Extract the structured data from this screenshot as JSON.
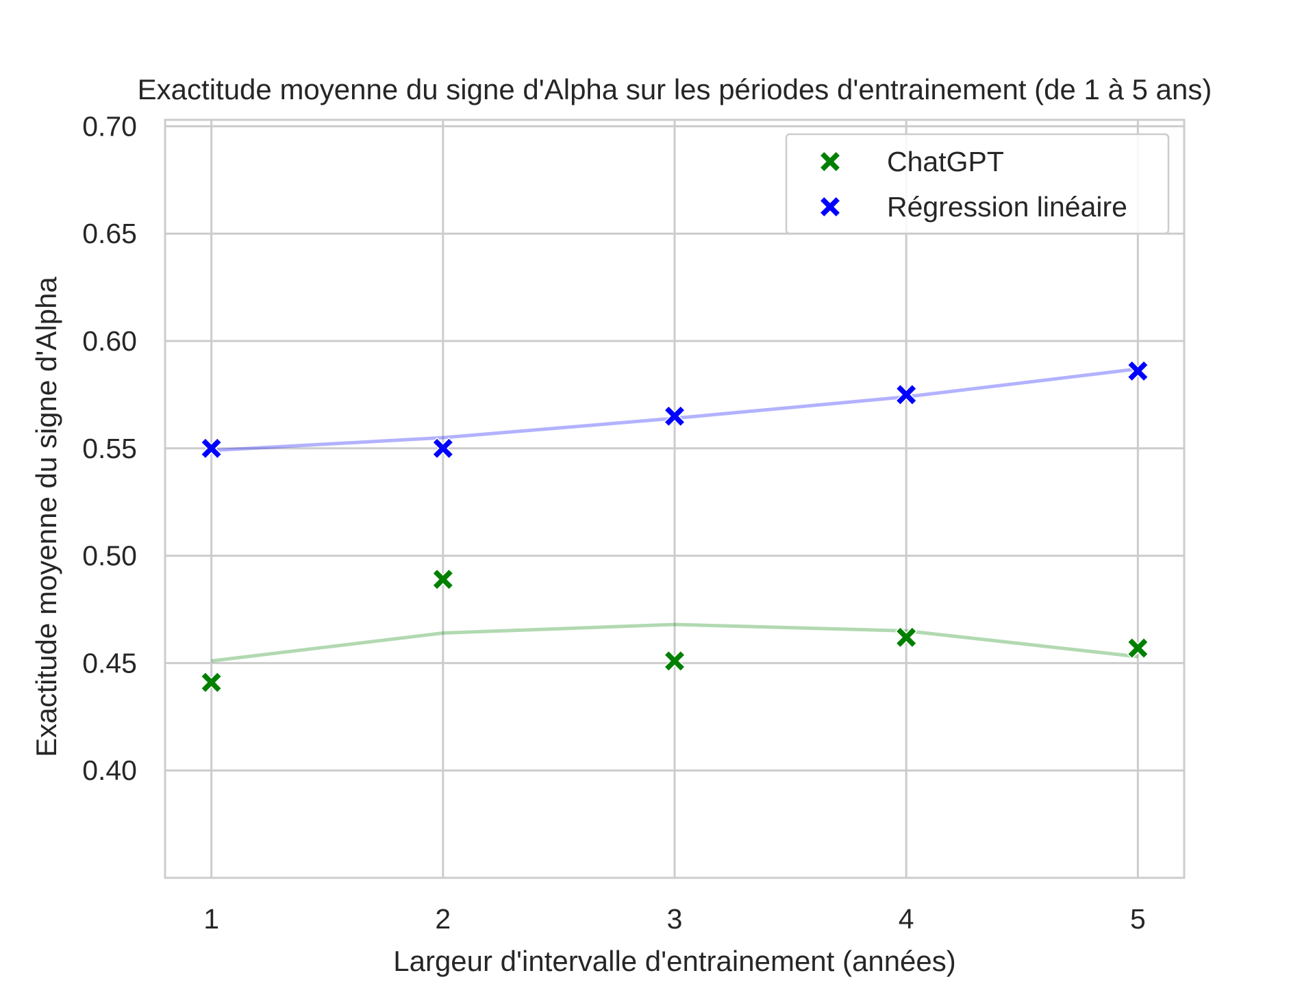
{
  "chart_data": {
    "type": "scatter",
    "title": "Exactitude moyenne du signe d'Alpha sur les périodes d'entrainement (de 1 à 5 ans)",
    "xlabel": "Largeur d'intervalle d'entrainement (années)",
    "ylabel": "Exactitude moyenne du signe d'Alpha",
    "x": [
      1,
      2,
      3,
      4,
      5
    ],
    "xlim": [
      0.8,
      5.2
    ],
    "ylim": [
      0.35,
      0.703
    ],
    "x_ticks": [
      "1",
      "2",
      "3",
      "4",
      "5"
    ],
    "y_ticks": [
      "0.40",
      "0.45",
      "0.50",
      "0.55",
      "0.60",
      "0.65",
      "0.70"
    ],
    "grid": true,
    "legend_position": "top-right",
    "series": [
      {
        "name": "ChatGPT",
        "color": "#008000",
        "marker": "X",
        "values": [
          0.441,
          0.489,
          0.451,
          0.462,
          0.457
        ],
        "trend": [
          0.451,
          0.464,
          0.468,
          0.465,
          0.453
        ]
      },
      {
        "name": "Régression linéaire",
        "color": "#0000ff",
        "marker": "X",
        "values": [
          0.55,
          0.55,
          0.565,
          0.575,
          0.586
        ],
        "trend": [
          0.549,
          0.555,
          0.564,
          0.574,
          0.587
        ]
      }
    ]
  }
}
